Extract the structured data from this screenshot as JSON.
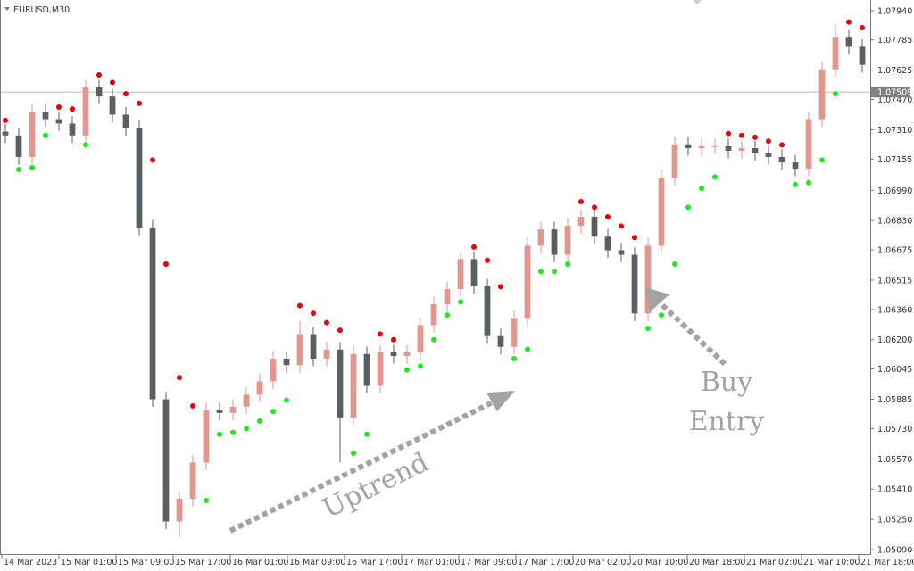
{
  "chart_data": {
    "type": "candlestick",
    "symbol": "EURUSD,M30",
    "xlim": [
      -0.4,
      64.6
    ],
    "ylim": [
      1.05062,
      1.07996
    ],
    "xticks": [
      {
        "value": -0.267,
        "label": "14 Mar 2023"
      },
      {
        "value": 4,
        "label": "15 Mar 01:00"
      },
      {
        "value": 8.267,
        "label": "15 Mar 09:00"
      },
      {
        "value": 12.533,
        "label": "15 Mar 17:00"
      },
      {
        "value": 16.8,
        "label": "16 Mar 01:00"
      },
      {
        "value": 21.067,
        "label": "16 Mar 09:00"
      },
      {
        "value": 25.333,
        "label": "16 Mar 17:00"
      },
      {
        "value": 29.6,
        "label": "17 Mar 01:00"
      },
      {
        "value": 33.867,
        "label": "17 Mar 09:00"
      },
      {
        "value": 38.133,
        "label": "17 Mar 17:00"
      },
      {
        "value": 42.4,
        "label": "20 Mar 02:00"
      },
      {
        "value": 46.667,
        "label": "20 Mar 10:00"
      },
      {
        "value": 50.933,
        "label": "20 Mar 18:00"
      },
      {
        "value": 55.2,
        "label": "21 Mar 02:00"
      },
      {
        "value": 59.467,
        "label": "21 Mar 10:00"
      },
      {
        "value": 63.733,
        "label": "21 Mar 18:00"
      }
    ],
    "yticks": [
      {
        "value": 1.0794,
        "label": "1.07940"
      },
      {
        "value": 1.07785,
        "label": "1.07785"
      },
      {
        "value": 1.07625,
        "label": "1.07625"
      },
      {
        "value": 1.0747,
        "label": "1.07470"
      },
      {
        "value": 1.0731,
        "label": "1.07310"
      },
      {
        "value": 1.07155,
        "label": "1.07155"
      },
      {
        "value": 1.0699,
        "label": "1.06990"
      },
      {
        "value": 1.0683,
        "label": "1.06830"
      },
      {
        "value": 1.06675,
        "label": "1.06675"
      },
      {
        "value": 1.06515,
        "label": "1.06515"
      },
      {
        "value": 1.0636,
        "label": "1.06360"
      },
      {
        "value": 1.062,
        "label": "1.06200"
      },
      {
        "value": 1.06045,
        "label": "1.06045"
      },
      {
        "value": 1.05885,
        "label": "1.05885"
      },
      {
        "value": 1.0573,
        "label": "1.05730"
      },
      {
        "value": 1.0557,
        "label": "1.05570"
      },
      {
        "value": 1.0541,
        "label": "1.05410"
      },
      {
        "value": 1.0525,
        "label": "1.05250"
      },
      {
        "value": 1.0509,
        "label": "1.05090"
      }
    ],
    "open": [
      1.073,
      1.0728,
      1.07166,
      1.07405,
      1.07366,
      1.07343,
      1.0728,
      1.07534,
      1.07486,
      1.0739,
      1.07319,
      1.06793,
      1.05885,
      1.05239,
      1.05359,
      1.0555,
      1.05827,
      1.05813,
      1.05846,
      1.05909,
      1.0598,
      1.061,
      1.06066,
      1.06229,
      1.061,
      1.06148,
      1.05789,
      1.06124,
      1.05956,
      1.06133,
      1.06114,
      1.06133,
      1.06277,
      1.06387,
      1.06468,
      1.06626,
      1.06482,
      1.06219,
      1.06162,
      1.06315,
      1.06697,
      1.06783,
      1.06649,
      1.06802,
      1.0685,
      1.06745,
      1.06673,
      1.06649,
      1.06339,
      1.06697,
      1.07056,
      1.07233,
      1.07213,
      1.07223,
      1.07223,
      1.07199,
      1.07213,
      1.07185,
      1.07166,
      1.07137,
      1.07104,
      1.07366,
      1.07629,
      1.07797,
      1.07749
    ],
    "high": [
      1.0734,
      1.0732,
      1.07445,
      1.07445,
      1.07406,
      1.07383,
      1.07574,
      1.07574,
      1.07526,
      1.0743,
      1.07359,
      1.06833,
      1.05925,
      1.05399,
      1.0559,
      1.05867,
      1.05867,
      1.05886,
      1.05949,
      1.0602,
      1.0614,
      1.0614,
      1.063,
      1.06269,
      1.06188,
      1.06188,
      1.06164,
      1.06164,
      1.06173,
      1.06173,
      1.06173,
      1.06317,
      1.06427,
      1.06508,
      1.06666,
      1.06666,
      1.06522,
      1.06259,
      1.06355,
      1.06737,
      1.06823,
      1.06823,
      1.06842,
      1.0689,
      1.0689,
      1.06785,
      1.06713,
      1.06689,
      1.06737,
      1.07096,
      1.07273,
      1.07273,
      1.07263,
      1.07263,
      1.07263,
      1.07253,
      1.07253,
      1.07225,
      1.07206,
      1.07177,
      1.07406,
      1.07669,
      1.0787,
      1.07837,
      1.07789
    ],
    "low": [
      1.0724,
      1.07126,
      1.07126,
      1.07326,
      1.07303,
      1.0724,
      1.0724,
      1.07446,
      1.0735,
      1.07279,
      1.06753,
      1.05845,
      1.05199,
      1.0515,
      1.05319,
      1.0551,
      1.05773,
      1.05773,
      1.05806,
      1.05869,
      1.0594,
      1.06026,
      1.06026,
      1.0606,
      1.0606,
      1.0555,
      1.05749,
      1.05916,
      1.05916,
      1.06074,
      1.06074,
      1.06093,
      1.06237,
      1.06347,
      1.06428,
      1.06442,
      1.06179,
      1.06122,
      1.06122,
      1.06275,
      1.06657,
      1.06609,
      1.06609,
      1.06762,
      1.06705,
      1.06633,
      1.06609,
      1.06299,
      1.06299,
      1.06657,
      1.07016,
      1.07173,
      1.07173,
      1.07183,
      1.07159,
      1.07159,
      1.07145,
      1.07126,
      1.07097,
      1.07064,
      1.07064,
      1.07326,
      1.07589,
      1.07709,
      1.07613
    ],
    "close": [
      1.0728,
      1.07166,
      1.07405,
      1.07366,
      1.07343,
      1.0728,
      1.07534,
      1.07486,
      1.0739,
      1.07319,
      1.06793,
      1.05885,
      1.05239,
      1.05359,
      1.0555,
      1.05827,
      1.05813,
      1.05846,
      1.05909,
      1.0598,
      1.061,
      1.06066,
      1.06229,
      1.061,
      1.06148,
      1.05789,
      1.06124,
      1.05956,
      1.06133,
      1.06114,
      1.06133,
      1.06277,
      1.06387,
      1.06468,
      1.06626,
      1.06482,
      1.06219,
      1.06162,
      1.06315,
      1.06697,
      1.06783,
      1.06649,
      1.06802,
      1.0685,
      1.06745,
      1.06673,
      1.06649,
      1.06339,
      1.06697,
      1.07056,
      1.07233,
      1.07213,
      1.07223,
      1.07223,
      1.07199,
      1.07213,
      1.07185,
      1.07166,
      1.07137,
      1.07104,
      1.07366,
      1.07629,
      1.07797,
      1.07749,
      1.07653
    ],
    "up_color": "#e2968f",
    "down_color": "#5b5e63",
    "sar": {
      "values": [
        1.0736,
        1.071,
        1.0711,
        1.0728,
        1.0743,
        1.0742,
        1.0723,
        1.076,
        1.0756,
        1.075,
        1.0745,
        1.0715,
        1.066,
        1.06,
        1.0585,
        1.0535,
        1.057,
        1.0571,
        1.0573,
        1.0577,
        1.0582,
        1.0588,
        1.0638,
        1.0634,
        1.0629,
        1.0625,
        1.056,
        1.057,
        1.0623,
        1.062,
        1.0604,
        1.0606,
        1.062,
        1.0633,
        1.064,
        1.0669,
        1.0662,
        1.0648,
        1.061,
        1.0615,
        1.0656,
        1.0656,
        1.066,
        1.0693,
        1.069,
        1.0685,
        1.068,
        1.0674,
        1.0626,
        1.0633,
        1.066,
        1.069,
        1.07,
        1.0706,
        1.0729,
        1.0728,
        1.0727,
        1.0725,
        1.0723,
        1.0702,
        1.0703,
        1.0715,
        1.075,
        1.0788,
        1.0785
      ],
      "above_color": "#e3000f",
      "below_color": "#1fe81f"
    },
    "current_price": {
      "value": 1.07509,
      "label": "1.07509"
    },
    "annotations": [
      "Uptrend",
      "Buy",
      "Entry"
    ]
  }
}
